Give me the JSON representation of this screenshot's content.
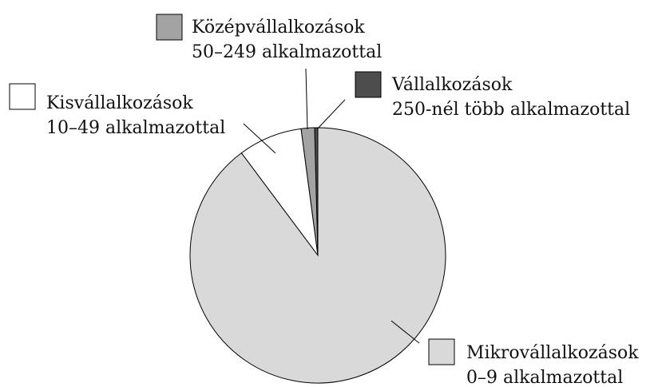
{
  "chart_data": {
    "type": "pie",
    "categories": [
      "Vállalkozások",
      "Középvállalkozások",
      "Kisvállalkozások",
      "Mikrovállalkozások"
    ],
    "descriptions": [
      "250-nél több alkalmazottal",
      "50–249 alkalmazottal",
      "10–49 alkalmazottal",
      "0–9 alkalmazottal"
    ],
    "values": [
      0.4,
      1.7,
      8.1,
      89.8
    ],
    "colors": [
      "#4d4d4d",
      "#a3a3a3",
      "#ffffff",
      "#d9d9d9"
    ]
  }
}
